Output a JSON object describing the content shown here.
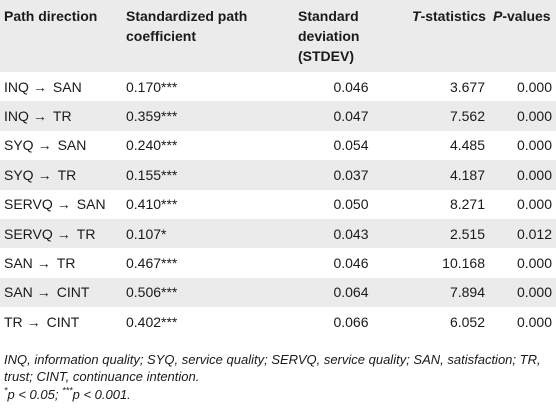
{
  "table": {
    "headers": {
      "path_direction": "Path direction",
      "coefficient": "Standardized path coefficient",
      "stdev": "Standard deviation (STDEV)",
      "t_stat_italic": "T",
      "t_stat_rest": "-statistics",
      "p_val_italic": "P",
      "p_val_rest": "-values"
    },
    "arrow_symbol": "→",
    "rows": [
      {
        "from": "INQ",
        "to": "SAN",
        "coef": "0.170***",
        "stdev": "0.046",
        "t": "3.677",
        "p": "0.000"
      },
      {
        "from": "INQ",
        "to": "TR",
        "coef": "0.359***",
        "stdev": "0.047",
        "t": "7.562",
        "p": "0.000"
      },
      {
        "from": "SYQ",
        "to": "SAN",
        "coef": "0.240***",
        "stdev": "0.054",
        "t": "4.485",
        "p": "0.000"
      },
      {
        "from": "SYQ",
        "to": "TR",
        "coef": "0.155***",
        "stdev": "0.037",
        "t": "4.187",
        "p": "0.000"
      },
      {
        "from": "SERVQ",
        "to": "SAN",
        "coef": "0.410***",
        "stdev": "0.050",
        "t": "8.271",
        "p": "0.000"
      },
      {
        "from": "SERVQ",
        "to": "TR",
        "coef": "0.107*",
        "stdev": "0.043",
        "t": "2.515",
        "p": "0.012"
      },
      {
        "from": "SAN",
        "to": "TR",
        "coef": "0.467***",
        "stdev": "0.046",
        "t": "10.168",
        "p": "0.000"
      },
      {
        "from": "SAN",
        "to": "CINT",
        "coef": "0.506***",
        "stdev": "0.064",
        "t": "7.894",
        "p": "0.000"
      },
      {
        "from": "TR",
        "to": "CINT",
        "coef": "0.402***",
        "stdev": "0.066",
        "t": "6.052",
        "p": "0.000"
      }
    ]
  },
  "footnotes": {
    "abbreviations": "INQ, information quality; SYQ, service quality; SERVQ, service quality; SAN, satisfaction; TR, trust; CINT, continuance intention.",
    "sig_star1": "*",
    "sig_text1": "p < 0.05; ",
    "sig_star3": "***",
    "sig_text3": "p < 0.001."
  }
}
